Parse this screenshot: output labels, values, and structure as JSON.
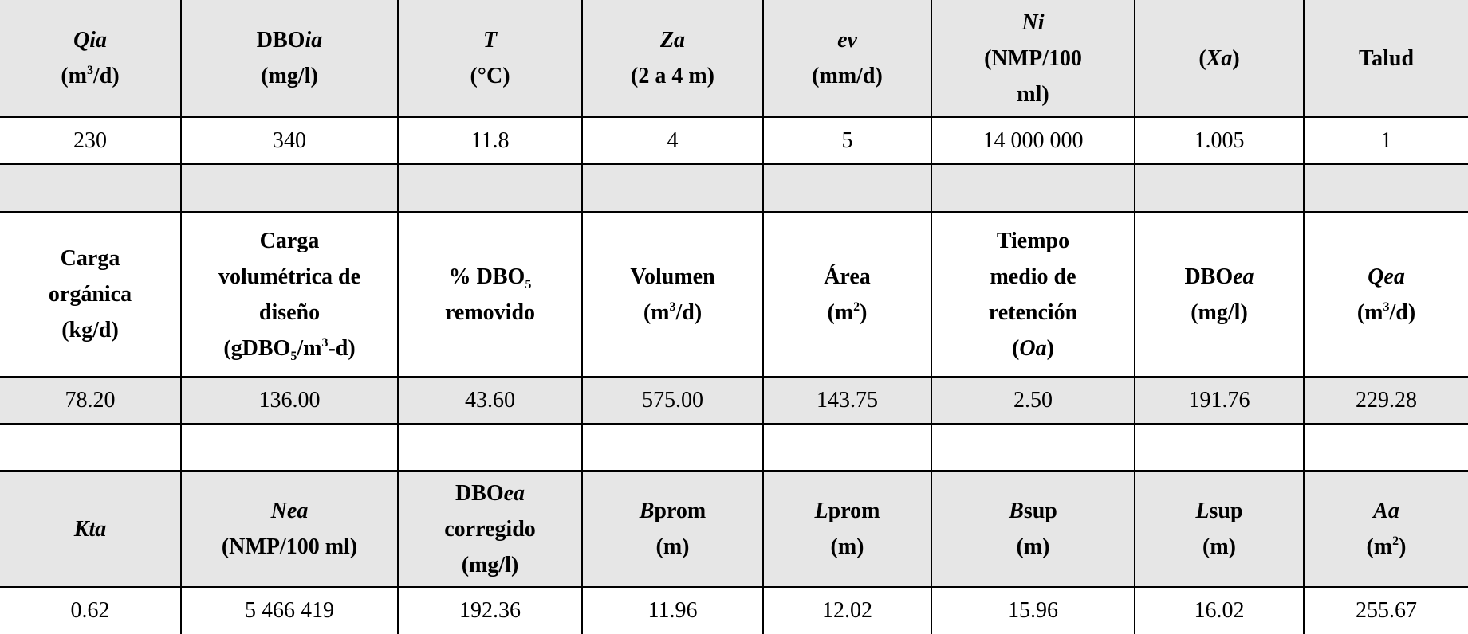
{
  "table": {
    "sections": [
      {
        "header": [
          [
            [
              {
                "text": "Qia",
                "style": "i"
              }
            ],
            [
              "(m",
              {
                "text": "3",
                "style": "sup"
              },
              "/d)"
            ]
          ],
          [
            [
              "DBO",
              {
                "text": "ia",
                "style": "i"
              }
            ],
            [
              "(mg/l)"
            ]
          ],
          [
            [
              {
                "text": "T",
                "style": "i"
              }
            ],
            [
              "(°C)"
            ]
          ],
          [
            [
              {
                "text": "Za",
                "style": "i"
              }
            ],
            [
              "(2 a 4 m)"
            ]
          ],
          [
            [
              {
                "text": "ev",
                "style": "i"
              }
            ],
            [
              "(mm/d)"
            ]
          ],
          [
            [
              {
                "text": "Ni",
                "style": "i"
              }
            ],
            [
              "(NMP/100"
            ],
            [
              "ml)"
            ]
          ],
          [
            [
              "(",
              {
                "text": "Xa",
                "style": "i"
              },
              ")"
            ]
          ],
          [
            [
              "Talud"
            ]
          ]
        ],
        "row": [
          "230",
          "340",
          "11.8",
          "4",
          "5",
          "14 000 000",
          "1.005",
          "1"
        ]
      },
      {
        "header": [
          [
            [
              "Carga"
            ],
            [
              "orgánica"
            ],
            [
              "(kg/d)"
            ]
          ],
          [
            [
              "Carga"
            ],
            [
              "volumétrica de"
            ],
            [
              "diseño"
            ],
            [
              "(gDBO",
              {
                "text": "5",
                "style": "sub"
              },
              "/m",
              {
                "text": "3",
                "style": "sup"
              },
              "-d)"
            ]
          ],
          [
            [
              "% DBO",
              {
                "text": "5",
                "style": "sub"
              }
            ],
            [
              "removido"
            ]
          ],
          [
            [
              "Volumen"
            ],
            [
              "(m",
              {
                "text": "3",
                "style": "sup"
              },
              "/d)"
            ]
          ],
          [
            [
              "Área"
            ],
            [
              "(m",
              {
                "text": "2",
                "style": "sup"
              },
              ")"
            ]
          ],
          [
            [
              "Tiempo"
            ],
            [
              "medio de"
            ],
            [
              "retención"
            ],
            [
              "(",
              {
                "text": "Oa",
                "style": "i"
              },
              ")"
            ]
          ],
          [
            [
              "DBO",
              {
                "text": "ea",
                "style": "i"
              }
            ],
            [
              "(mg/l)"
            ]
          ],
          [
            [
              {
                "text": "Qea",
                "style": "i"
              }
            ],
            [
              "(m",
              {
                "text": "3",
                "style": "sup"
              },
              "/d)"
            ]
          ]
        ],
        "row": [
          "78.20",
          "136.00",
          "43.60",
          "575.00",
          "143.75",
          "2.50",
          "191.76",
          "229.28"
        ]
      },
      {
        "header": [
          [
            [
              {
                "text": "Kta",
                "style": "i"
              }
            ]
          ],
          [
            [
              {
                "text": "Nea",
                "style": "i"
              }
            ],
            [
              "(NMP/100 ml)"
            ]
          ],
          [
            [
              "DBO",
              {
                "text": "ea",
                "style": "i"
              }
            ],
            [
              "corregido"
            ],
            [
              "(mg/l)"
            ]
          ],
          [
            [
              {
                "text": "B",
                "style": "i"
              },
              "prom"
            ],
            [
              "(m)"
            ]
          ],
          [
            [
              {
                "text": "L",
                "style": "i"
              },
              "prom"
            ],
            [
              "(m)"
            ]
          ],
          [
            [
              {
                "text": "B",
                "style": "i"
              },
              "sup"
            ],
            [
              "(m)"
            ]
          ],
          [
            [
              {
                "text": "L",
                "style": "i"
              },
              "sup"
            ],
            [
              "(m)"
            ]
          ],
          [
            [
              {
                "text": "Aa",
                "style": "i"
              }
            ],
            [
              "(m",
              {
                "text": "2",
                "style": "sup"
              },
              ")"
            ]
          ]
        ],
        "row": [
          "0.62",
          "5 466 419",
          "192.36",
          "11.96",
          "12.02",
          "15.96",
          "16.02",
          "255.67"
        ]
      }
    ]
  }
}
